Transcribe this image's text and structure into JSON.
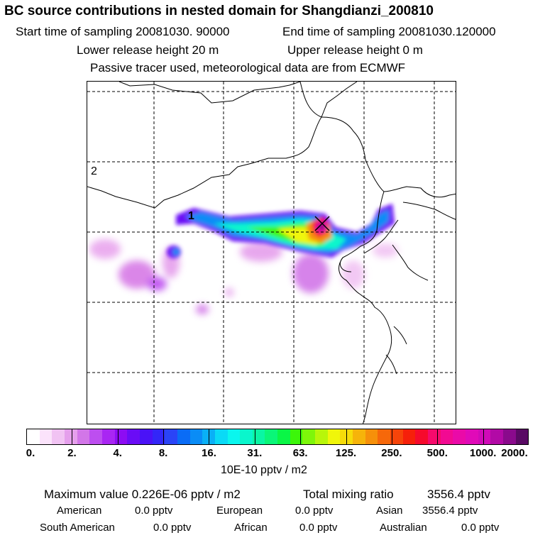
{
  "header": {
    "title": "BC  source contributions in nested domain for Shangdianzi_200810",
    "start_label": "Start time of sampling 20081030. 90000",
    "end_label": "End time of sampling 20081030.120000",
    "lower_label": "Lower release height   20 m",
    "upper_label": "Upper release height    0 m",
    "tracer_label": "Passive tracer used, meteorological data are from ECMWF"
  },
  "map": {
    "grid_label_2": "2",
    "grid_label_1": "1"
  },
  "colorbar": {
    "colors": [
      "#ffffff",
      "#fbe3fb",
      "#f1c3f3",
      "#e59fec",
      "#d276e8",
      "#bd4ef0",
      "#a926f3",
      "#8d0cf3",
      "#6a0cf6",
      "#4a12f7",
      "#3326f8",
      "#2a44f7",
      "#0a6cf6",
      "#0a8cf6",
      "#0ab0f6",
      "#0adaf6",
      "#0af6ee",
      "#0af6cc",
      "#0af6a4",
      "#0af678",
      "#0af646",
      "#3cf60a",
      "#7ef60a",
      "#b8f60a",
      "#f0f60a",
      "#f6dc0a",
      "#f6b40a",
      "#f6900a",
      "#f6680a",
      "#f6440a",
      "#f6200a",
      "#f60a2c",
      "#f60a6c",
      "#f20a92",
      "#ea0aa8",
      "#e00ab8",
      "#d00ab8",
      "#b20aa6",
      "#8a0a8c",
      "#5a0a64"
    ],
    "labels": [
      "0.",
      "2.",
      "4.",
      "8.",
      "16.",
      "31.",
      "63.",
      "125.",
      "250.",
      "500.",
      "1000.",
      "2000."
    ],
    "units": "10E-10 pptv / m2"
  },
  "stats": {
    "max_label": "Maximum value  0.226E-06 pptv / m2",
    "total_label": "Total mixing ratio",
    "total_value": "3556.4 pptv",
    "american_label": "American",
    "american_value": "0.0 pptv",
    "european_label": "European",
    "european_value": "0.0 pptv",
    "asian_label": "Asian",
    "asian_value": "3556.4 pptv",
    "south_american_label": "South American",
    "south_american_value": "0.0 pptv",
    "african_label": "African",
    "african_value": "0.0 pptv",
    "australian_label": "Australian",
    "australian_value": "0.0 pptv"
  }
}
